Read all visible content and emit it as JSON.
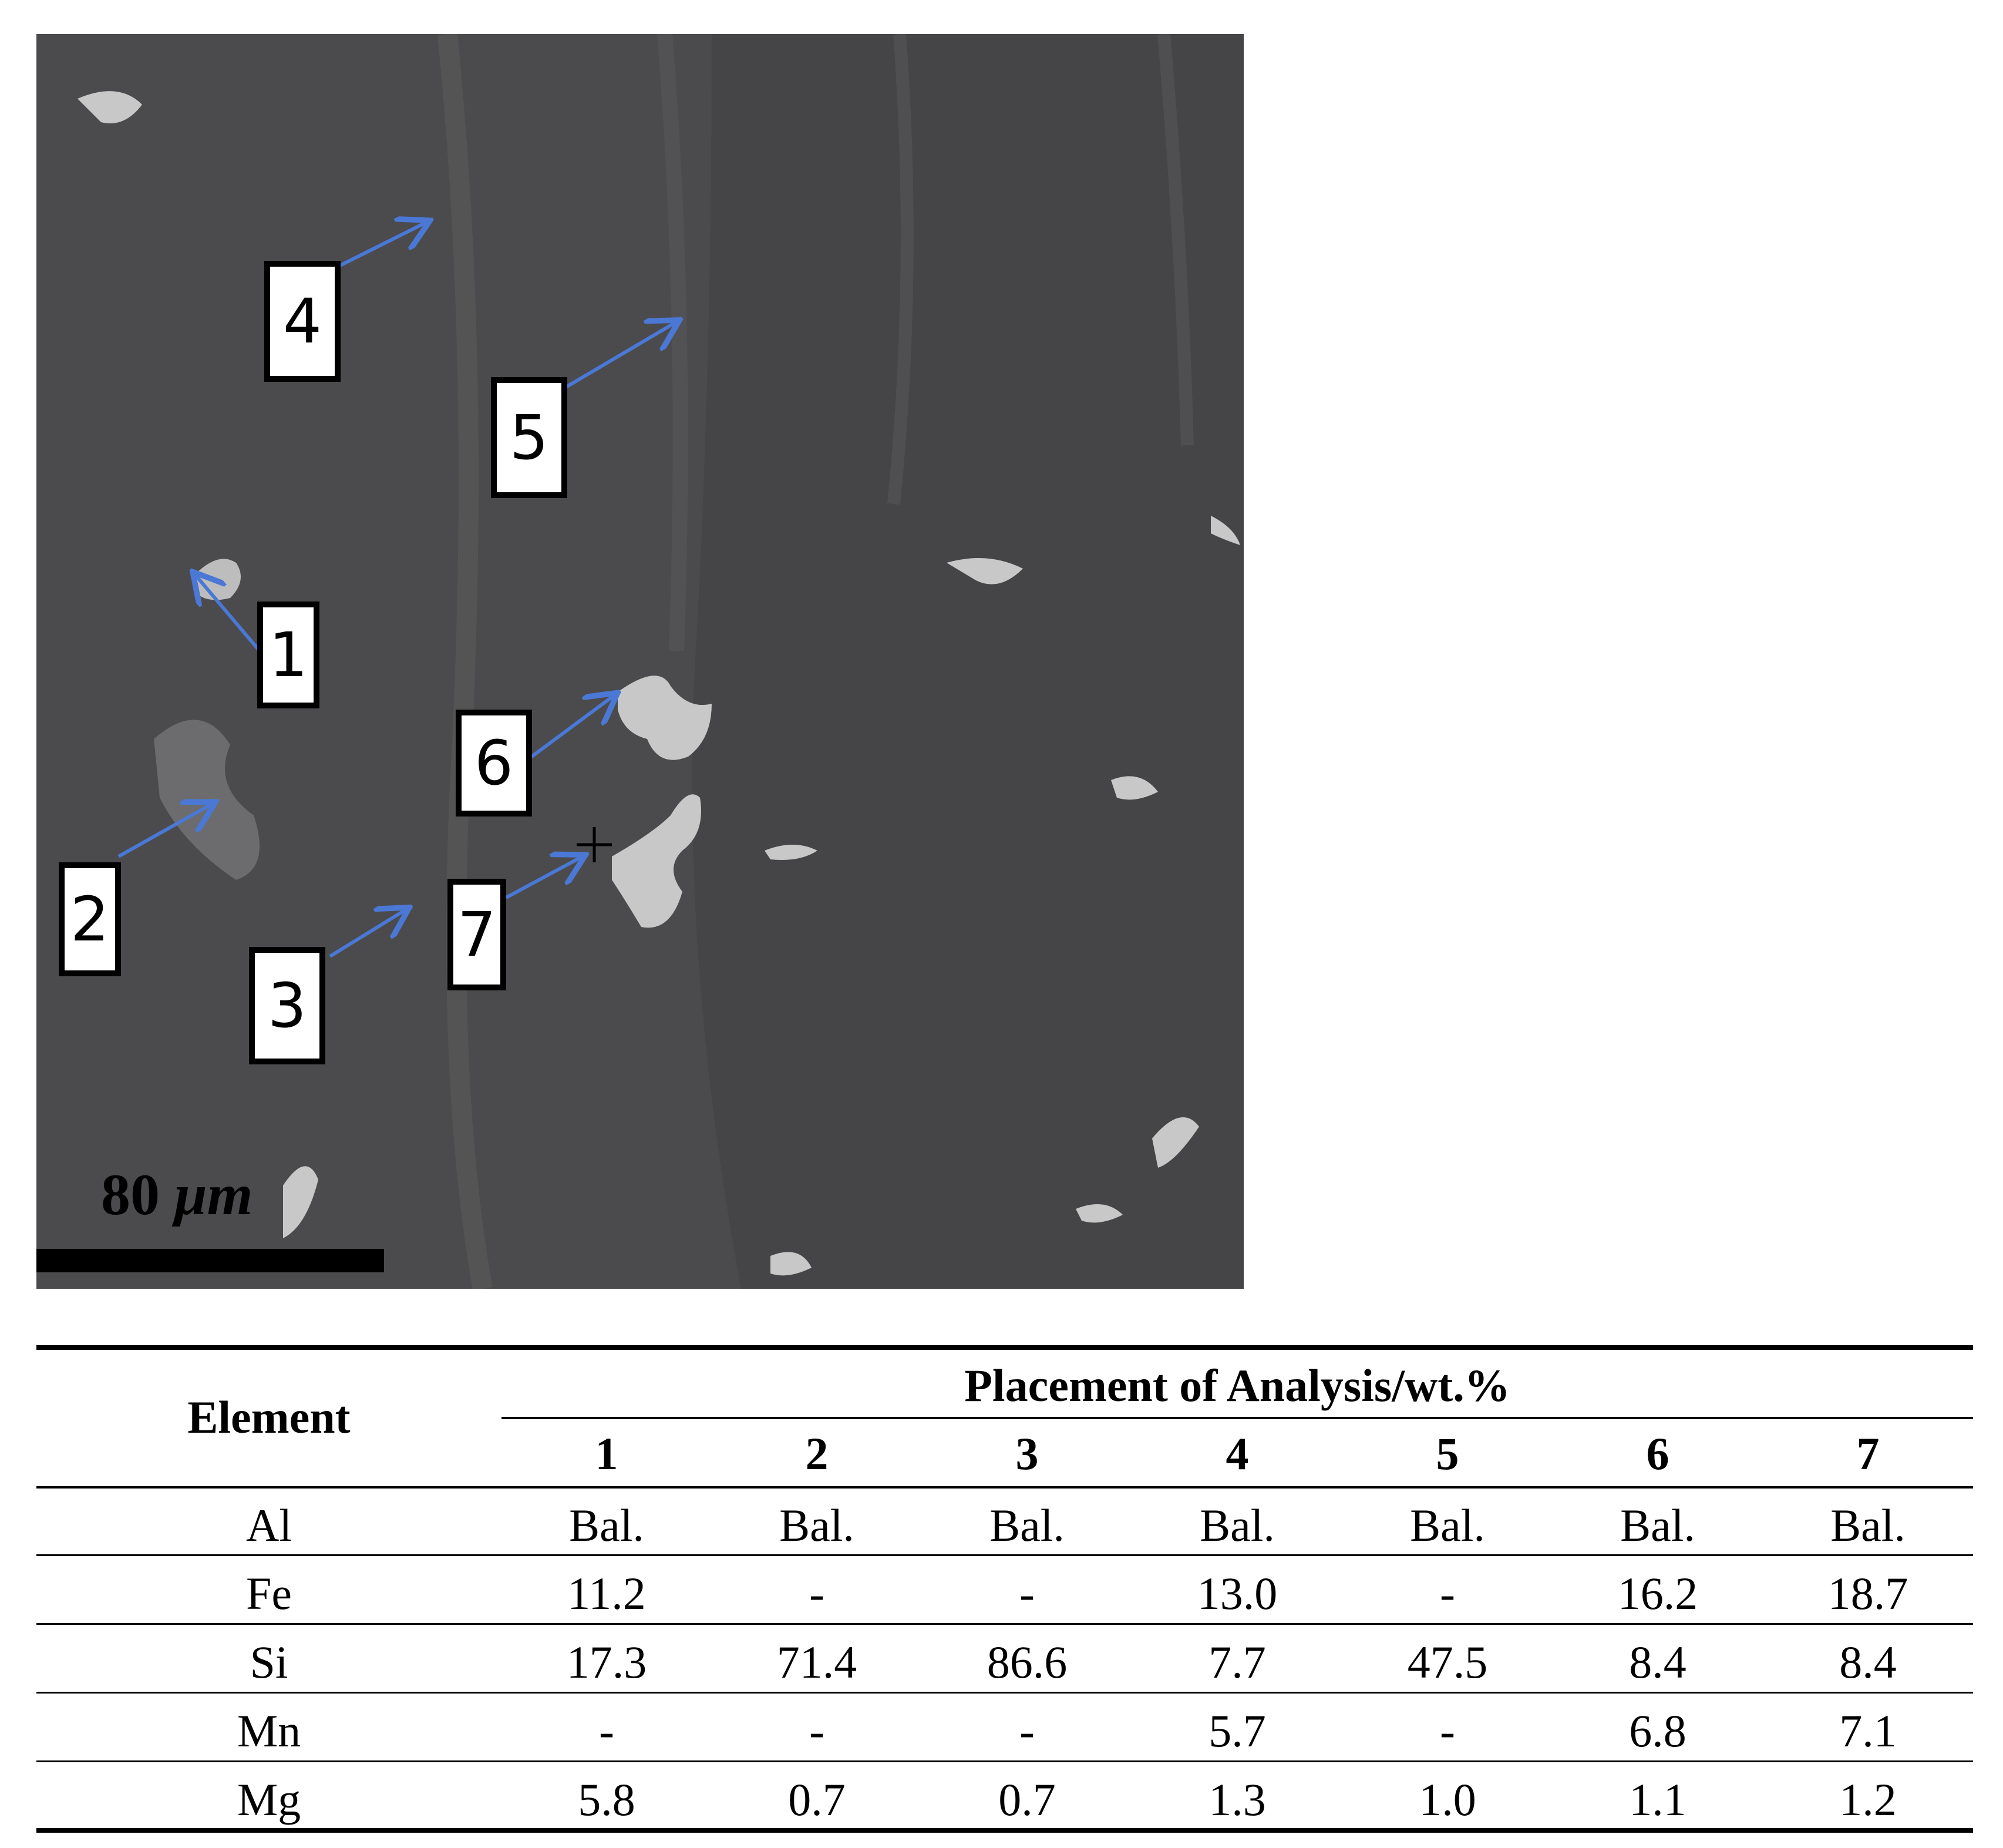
{
  "figure": {
    "scale_bar": {
      "value": "80",
      "unit": "μm"
    },
    "callouts": [
      "1",
      "2",
      "3",
      "4",
      "5",
      "6",
      "7"
    ]
  },
  "table": {
    "row_header": "Element",
    "group_header": "Placement of Analysis/wt.%",
    "columns": [
      "1",
      "2",
      "3",
      "4",
      "5",
      "6",
      "7"
    ],
    "rows": [
      {
        "element": "Al",
        "values": [
          "Bal.",
          "Bal.",
          "Bal.",
          "Bal.",
          "Bal.",
          "Bal.",
          "Bal."
        ]
      },
      {
        "element": "Fe",
        "values": [
          "11.2",
          "-",
          "-",
          "13.0",
          "-",
          "16.2",
          "18.7"
        ]
      },
      {
        "element": "Si",
        "values": [
          "17.3",
          "71.4",
          "86.6",
          "7.7",
          "47.5",
          "8.4",
          "8.4"
        ]
      },
      {
        "element": "Mn",
        "values": [
          "-",
          "-",
          "-",
          "5.7",
          "-",
          "6.8",
          "7.1"
        ]
      },
      {
        "element": "Mg",
        "values": [
          "5.8",
          "0.7",
          "0.7",
          "1.3",
          "1.0",
          "1.1",
          "1.2"
        ]
      }
    ]
  },
  "colors": {
    "matrix": "#4b4b4d",
    "arrow": "#4a78d4",
    "particle": "#cfcfcf"
  }
}
